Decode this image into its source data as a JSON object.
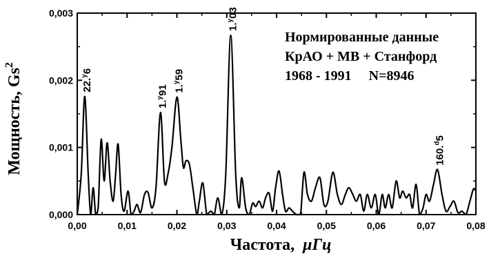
{
  "chart_data": {
    "type": "line",
    "xlabel": "Частота,",
    "xunit": "μГц",
    "ylabel": "Мощность, Gs",
    "ylabel_sup": "2",
    "xlim": [
      0.0,
      0.08
    ],
    "ylim": [
      0.0,
      0.003
    ],
    "x_ticks": [
      "0,00",
      "0,01",
      "0,02",
      "0,03",
      "0,04",
      "0,05",
      "0,06",
      "0,07",
      "0,08"
    ],
    "y_ticks": [
      "0,000",
      "0,001",
      "0,002",
      "0,003"
    ],
    "annotation_lines": [
      "Нормированные данные",
      "КрАО + МВ + Станфорд",
      "1968 - 1991     N=8946"
    ],
    "peaks": [
      {
        "x": 0.0015,
        "y": 0.00176,
        "label_pre": "22.",
        "label_sup": "y",
        "label_post": "6"
      },
      {
        "x": 0.0167,
        "y": 0.00152,
        "label_pre": "1.",
        "label_sup": "y",
        "label_post": "91"
      },
      {
        "x": 0.02,
        "y": 0.00175,
        "label_pre": "1.",
        "label_sup": "y",
        "label_post": "59"
      },
      {
        "x": 0.0308,
        "y": 0.00267,
        "label_pre": "1.",
        "label_sup": "y",
        "label_post": "03"
      },
      {
        "x": 0.0723,
        "y": 0.00067,
        "label_pre": "160.",
        "label_sup": "d",
        "label_post": "5"
      }
    ],
    "series": [
      {
        "points": [
          [
            0.0,
            0.0
          ],
          [
            0.0008,
            0.0006
          ],
          [
            0.0015,
            0.00176
          ],
          [
            0.0022,
            0.0006
          ],
          [
            0.0027,
            0.0
          ],
          [
            0.0032,
            0.0004
          ],
          [
            0.0037,
            0.0
          ],
          [
            0.0042,
            0.0001
          ],
          [
            0.0048,
            0.00112
          ],
          [
            0.0054,
            0.0005
          ],
          [
            0.006,
            0.00107
          ],
          [
            0.0066,
            0.0005
          ],
          [
            0.0072,
            0.0002
          ],
          [
            0.0077,
            0.0006
          ],
          [
            0.0082,
            0.00105
          ],
          [
            0.0088,
            0.0003
          ],
          [
            0.0094,
            5e-05
          ],
          [
            0.0102,
            0.00035
          ],
          [
            0.0108,
            0.0
          ],
          [
            0.0114,
            5e-05
          ],
          [
            0.012,
            0.00015
          ],
          [
            0.0127,
            3e-05
          ],
          [
            0.0135,
            0.0003
          ],
          [
            0.0142,
            0.00033
          ],
          [
            0.015,
            0.0001
          ],
          [
            0.0158,
            0.0004
          ],
          [
            0.0167,
            0.00152
          ],
          [
            0.0175,
            0.0005
          ],
          [
            0.0182,
            0.0006
          ],
          [
            0.019,
            0.001
          ],
          [
            0.02,
            0.00175
          ],
          [
            0.0208,
            0.0011
          ],
          [
            0.0213,
            0.0007
          ],
          [
            0.0218,
            0.0008
          ],
          [
            0.0225,
            0.00075
          ],
          [
            0.0232,
            0.0004
          ],
          [
            0.024,
            0.0
          ],
          [
            0.0245,
            0.0002
          ],
          [
            0.0252,
            0.00047
          ],
          [
            0.026,
            0.0
          ],
          [
            0.0268,
            5e-05
          ],
          [
            0.0275,
            0.0
          ],
          [
            0.0282,
            0.00025
          ],
          [
            0.029,
            0.0
          ],
          [
            0.0298,
            0.0006
          ],
          [
            0.0308,
            0.00267
          ],
          [
            0.0318,
            0.0006
          ],
          [
            0.0325,
            0.0001
          ],
          [
            0.033,
            0.00055
          ],
          [
            0.0338,
            0.0001
          ],
          [
            0.0345,
            0.0
          ],
          [
            0.0352,
            0.00017
          ],
          [
            0.0358,
            0.00012
          ],
          [
            0.0365,
            0.0002
          ],
          [
            0.0372,
            0.0001
          ],
          [
            0.0378,
            0.00025
          ],
          [
            0.0385,
            0.00032
          ],
          [
            0.0392,
            5e-05
          ],
          [
            0.0398,
            0.0004
          ],
          [
            0.0405,
            0.00065
          ],
          [
            0.0412,
            0.0003
          ],
          [
            0.0418,
            5e-05
          ],
          [
            0.0425,
            0.0001
          ],
          [
            0.0432,
            5e-05
          ],
          [
            0.044,
            0.0
          ],
          [
            0.0448,
            0.0
          ],
          [
            0.0455,
            0.00063
          ],
          [
            0.0462,
            0.0003
          ],
          [
            0.047,
            0.0002
          ],
          [
            0.0478,
            0.0004
          ],
          [
            0.0487,
            0.00055
          ],
          [
            0.0495,
            0.00015
          ],
          [
            0.0503,
            0.0002
          ],
          [
            0.0513,
            0.00063
          ],
          [
            0.0522,
            0.0003
          ],
          [
            0.053,
            0.00015
          ],
          [
            0.0538,
            0.0003
          ],
          [
            0.0545,
            0.0004
          ],
          [
            0.0553,
            0.0003
          ],
          [
            0.056,
            0.0002
          ],
          [
            0.0568,
            0.0003
          ],
          [
            0.0575,
            5e-05
          ],
          [
            0.0582,
            0.0003
          ],
          [
            0.059,
            0.0001
          ],
          [
            0.0598,
            0.0003
          ],
          [
            0.0605,
            0.0
          ],
          [
            0.0612,
            0.0003
          ],
          [
            0.0618,
            0.0001
          ],
          [
            0.0625,
            0.0003
          ],
          [
            0.0632,
            0.0001
          ],
          [
            0.064,
            0.0005
          ],
          [
            0.0647,
            0.00025
          ],
          [
            0.0653,
            0.00035
          ],
          [
            0.066,
            0.00025
          ],
          [
            0.0667,
            0.0003
          ],
          [
            0.0673,
            0.0001
          ],
          [
            0.068,
            0.00045
          ],
          [
            0.0687,
            0.0
          ],
          [
            0.0694,
            0.0001
          ],
          [
            0.07,
            0.0003
          ],
          [
            0.0707,
            0.0002
          ],
          [
            0.0715,
            0.00045
          ],
          [
            0.0723,
            0.00067
          ],
          [
            0.0732,
            0.0003
          ],
          [
            0.074,
            5e-05
          ],
          [
            0.0748,
            0.00012
          ],
          [
            0.0756,
            0.0002
          ],
          [
            0.0764,
            3e-05
          ],
          [
            0.0772,
            5e-05
          ],
          [
            0.078,
            0.0
          ],
          [
            0.0788,
            0.0002
          ],
          [
            0.0795,
            0.00038
          ],
          [
            0.08,
            0.00035
          ]
        ]
      }
    ]
  }
}
